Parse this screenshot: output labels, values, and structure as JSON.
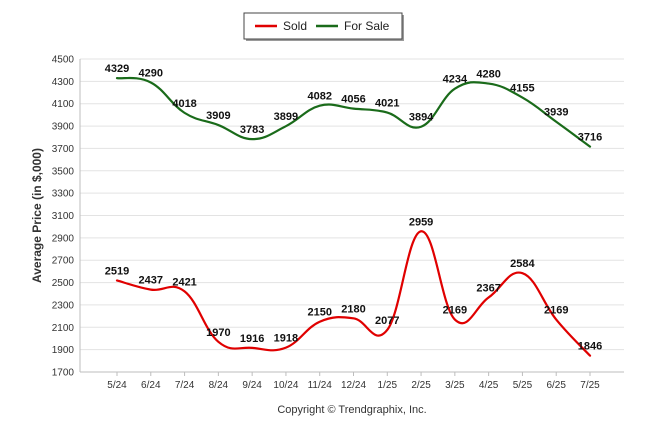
{
  "chart_data": {
    "type": "line",
    "categories": [
      "5/24",
      "6/24",
      "7/24",
      "8/24",
      "9/24",
      "10/24",
      "11/24",
      "12/24",
      "1/25",
      "2/25",
      "3/25",
      "4/25",
      "5/25",
      "6/25",
      "7/25"
    ],
    "series": [
      {
        "name": "Sold",
        "color": "#e00000",
        "values": [
          2519,
          2437,
          2421,
          1970,
          1916,
          1918,
          2150,
          2180,
          2077,
          2959,
          2169,
          2367,
          2584,
          2169,
          1846
        ]
      },
      {
        "name": "For Sale",
        "color": "#1a6b1a",
        "values": [
          4329,
          4290,
          4018,
          3909,
          3783,
          3899,
          4082,
          4056,
          4021,
          3894,
          4234,
          4280,
          4155,
          3939,
          3716
        ]
      }
    ],
    "ylabel": "Average Price (in $,000)",
    "xlabel": "",
    "ylim": [
      1700,
      4500
    ],
    "yticks": [
      1700,
      1900,
      2100,
      2300,
      2500,
      2700,
      2900,
      3100,
      3300,
      3500,
      3700,
      3900,
      4100,
      4300,
      4500
    ],
    "grid": true,
    "legend": "top-center",
    "data_labels": true
  },
  "credit": "Copyright © Trendgraphix, Inc."
}
